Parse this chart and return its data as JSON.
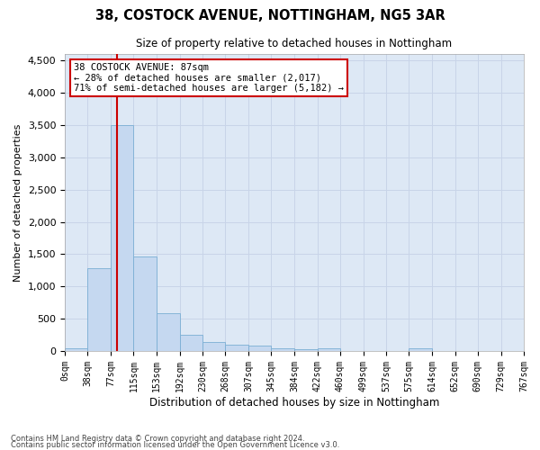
{
  "title1": "38, COSTOCK AVENUE, NOTTINGHAM, NG5 3AR",
  "title2": "Size of property relative to detached houses in Nottingham",
  "xlabel": "Distribution of detached houses by size in Nottingham",
  "ylabel": "Number of detached properties",
  "property_label": "38 COSTOCK AVENUE: 87sqm",
  "annotation_line1": "← 28% of detached houses are smaller (2,017)",
  "annotation_line2": "71% of semi-detached houses are larger (5,182) →",
  "bin_edges": [
    0,
    38,
    77,
    115,
    153,
    192,
    230,
    268,
    307,
    345,
    384,
    422,
    460,
    499,
    537,
    575,
    614,
    652,
    690,
    729,
    767
  ],
  "bar_heights": [
    40,
    1280,
    3500,
    1470,
    580,
    255,
    140,
    100,
    80,
    45,
    30,
    45,
    0,
    0,
    0,
    40,
    0,
    0,
    0,
    0
  ],
  "bar_color": "#c5d8f0",
  "bar_edge_color": "#7aaed4",
  "vline_x": 87,
  "vline_color": "#cc0000",
  "annotation_box_color": "#cc0000",
  "ylim": [
    0,
    4600
  ],
  "yticks": [
    0,
    500,
    1000,
    1500,
    2000,
    2500,
    3000,
    3500,
    4000,
    4500
  ],
  "grid_color": "#c8d4e8",
  "bg_color": "#dde8f5",
  "footer1": "Contains HM Land Registry data © Crown copyright and database right 2024.",
  "footer2": "Contains public sector information licensed under the Open Government Licence v3.0."
}
